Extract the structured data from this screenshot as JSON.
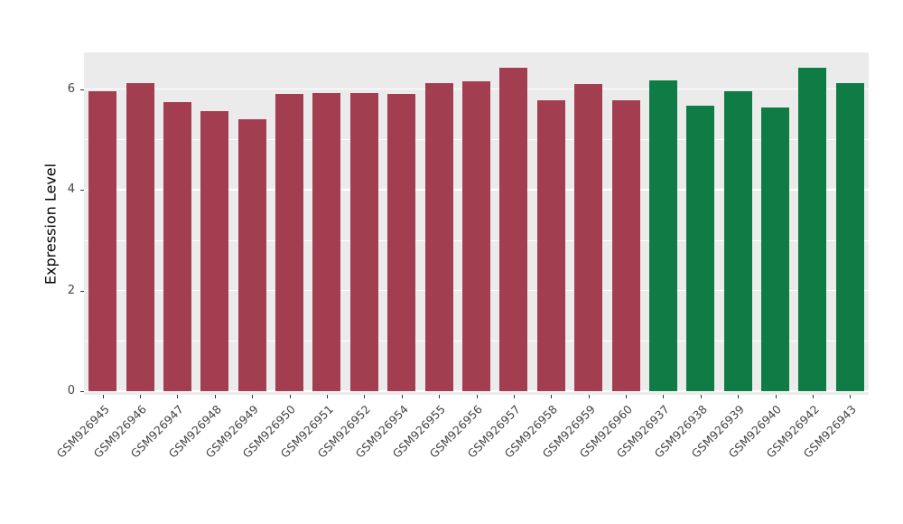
{
  "chart_data": {
    "type": "bar",
    "title": "",
    "xlabel": "",
    "ylabel": "Expression Level",
    "categories": [
      "GSM926945",
      "GSM926946",
      "GSM926947",
      "GSM926948",
      "GSM926949",
      "GSM926950",
      "GSM926951",
      "GSM926952",
      "GSM926954",
      "GSM926955",
      "GSM926956",
      "GSM926957",
      "GSM926958",
      "GSM926959",
      "GSM926960",
      "GSM926937",
      "GSM926938",
      "GSM926939",
      "GSM926940",
      "GSM926942",
      "GSM926943"
    ],
    "values": [
      5.95,
      6.12,
      5.75,
      5.57,
      5.4,
      5.9,
      5.92,
      5.93,
      5.9,
      6.12,
      6.15,
      6.43,
      5.77,
      6.1,
      5.77,
      6.17,
      5.67,
      5.95,
      5.63,
      6.43,
      6.12
    ],
    "bar_groups": [
      0,
      0,
      0,
      0,
      0,
      0,
      0,
      0,
      0,
      0,
      0,
      0,
      0,
      0,
      0,
      1,
      1,
      1,
      1,
      1,
      1
    ],
    "group_colors": [
      "#A33E50",
      "#0F7B45"
    ],
    "ylim": [
      0,
      6.73
    ],
    "yticks": [
      0,
      2,
      4,
      6
    ],
    "yticks_minor": [
      1,
      3,
      5
    ],
    "grid": true,
    "legend_position": "none",
    "panel_background": "#EBEBEB",
    "grid_color": "#FFFFFF",
    "axis_tick_color": "#333333",
    "axis_text_color": "#444444",
    "axis_title_color": "#000000"
  }
}
